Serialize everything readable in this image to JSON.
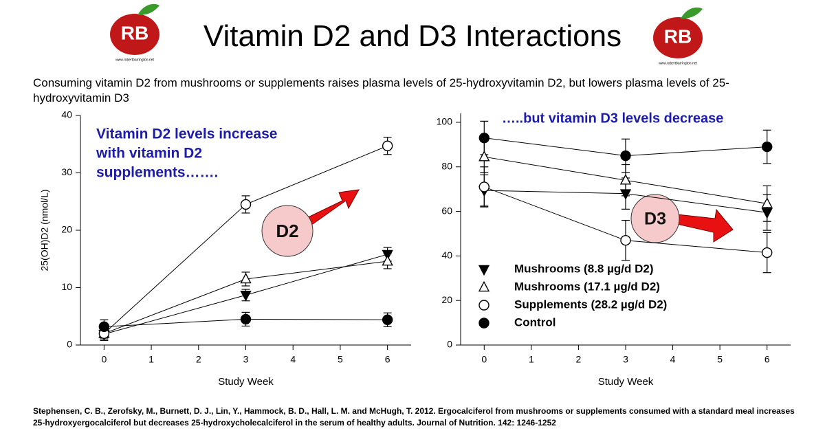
{
  "title": "Vitamin D2 and D3 Interactions",
  "subtitle": "Consuming vitamin D2 from mushrooms or supplements raises plasma levels of 25-hydroxyvitamin D2, but lowers plasma levels of 25-hydroxyvitamin D3",
  "citation": "Stephensen, C. B., Zerofsky, M., Burnett, D. J., Lin, Y., Hammock, B. D., Hall, L. M. and McHugh, T. 2012. Ergocalciferol from mushrooms or supplements consumed with a standard meal increases 25-hydroxyergocalciferol but decreases 25-hydroxycholecalciferol in the serum of healthy adults. Journal of Nutrition. 142: 1246-1252",
  "logo_initials": "RB",
  "logo_text": "www.robertbarrington.net",
  "chart_data": [
    {
      "type": "line",
      "x_label": "Study Week",
      "y_label": "25(OH)D2 (nmol/L)",
      "x": [
        0,
        3,
        6
      ],
      "xlim": [
        -0.5,
        6.5
      ],
      "xticks": [
        0,
        1,
        2,
        3,
        4,
        5,
        6
      ],
      "ylim": [
        0,
        40
      ],
      "yticks": [
        0,
        10,
        20,
        30,
        40
      ],
      "annotations": [
        "Vitamin D2 levels increase",
        "with vitamin D2",
        "supplements…….",
        "D2"
      ],
      "series": [
        {
          "color": "#000000",
          "marker": "triangle-down",
          "filled": true,
          "values": [
            1.9,
            8.7,
            15.8
          ],
          "errors": [
            1.0,
            1.0,
            1.2
          ]
        },
        {
          "color": "#000000",
          "marker": "triangle-up",
          "filled": false,
          "values": [
            2.0,
            11.5,
            14.6
          ],
          "errors": [
            0.8,
            1.2,
            1.3
          ]
        },
        {
          "color": "#000000",
          "marker": "circle",
          "filled": false,
          "values": [
            2.0,
            24.5,
            34.7
          ],
          "errors": [
            1.2,
            1.5,
            1.5
          ]
        },
        {
          "color": "#000000",
          "marker": "circle",
          "filled": true,
          "values": [
            3.2,
            4.5,
            4.4
          ],
          "errors": [
            1.2,
            1.2,
            1.2
          ]
        }
      ]
    },
    {
      "type": "line",
      "x_label": "Study Week",
      "x": [
        0,
        3,
        6
      ],
      "xlim": [
        -0.5,
        6.5
      ],
      "xticks": [
        0,
        1,
        2,
        3,
        4,
        5,
        6
      ],
      "ylim": [
        0,
        104
      ],
      "yticks": [
        0,
        20,
        40,
        60,
        80,
        100
      ],
      "legend": "lower left",
      "annotations": [
        "…..but vitamin D3 levels decrease",
        "D3"
      ],
      "series": [
        {
          "name": "Mushrooms (8.8 µg/d D2)",
          "color": "#000000",
          "marker": "triangle-down",
          "filled": true,
          "values": [
            69.4,
            68,
            59.5
          ],
          "errors": [
            7,
            7,
            8
          ]
        },
        {
          "name": "Mushrooms (17.1 µg/d D2)",
          "color": "#000000",
          "marker": "triangle-up",
          "filled": false,
          "values": [
            84.5,
            74,
            63.5
          ],
          "errors": [
            7,
            7,
            8
          ]
        },
        {
          "name": "Supplements (28.2 µg/d D2)",
          "color": "#000000",
          "marker": "circle",
          "filled": false,
          "values": [
            71,
            47,
            41.5
          ],
          "errors": [
            9,
            9,
            9
          ]
        },
        {
          "name": "Control",
          "color": "#000000",
          "marker": "circle",
          "filled": true,
          "values": [
            93,
            85,
            89
          ],
          "errors": [
            7.5,
            7.5,
            7.5
          ]
        }
      ]
    }
  ]
}
